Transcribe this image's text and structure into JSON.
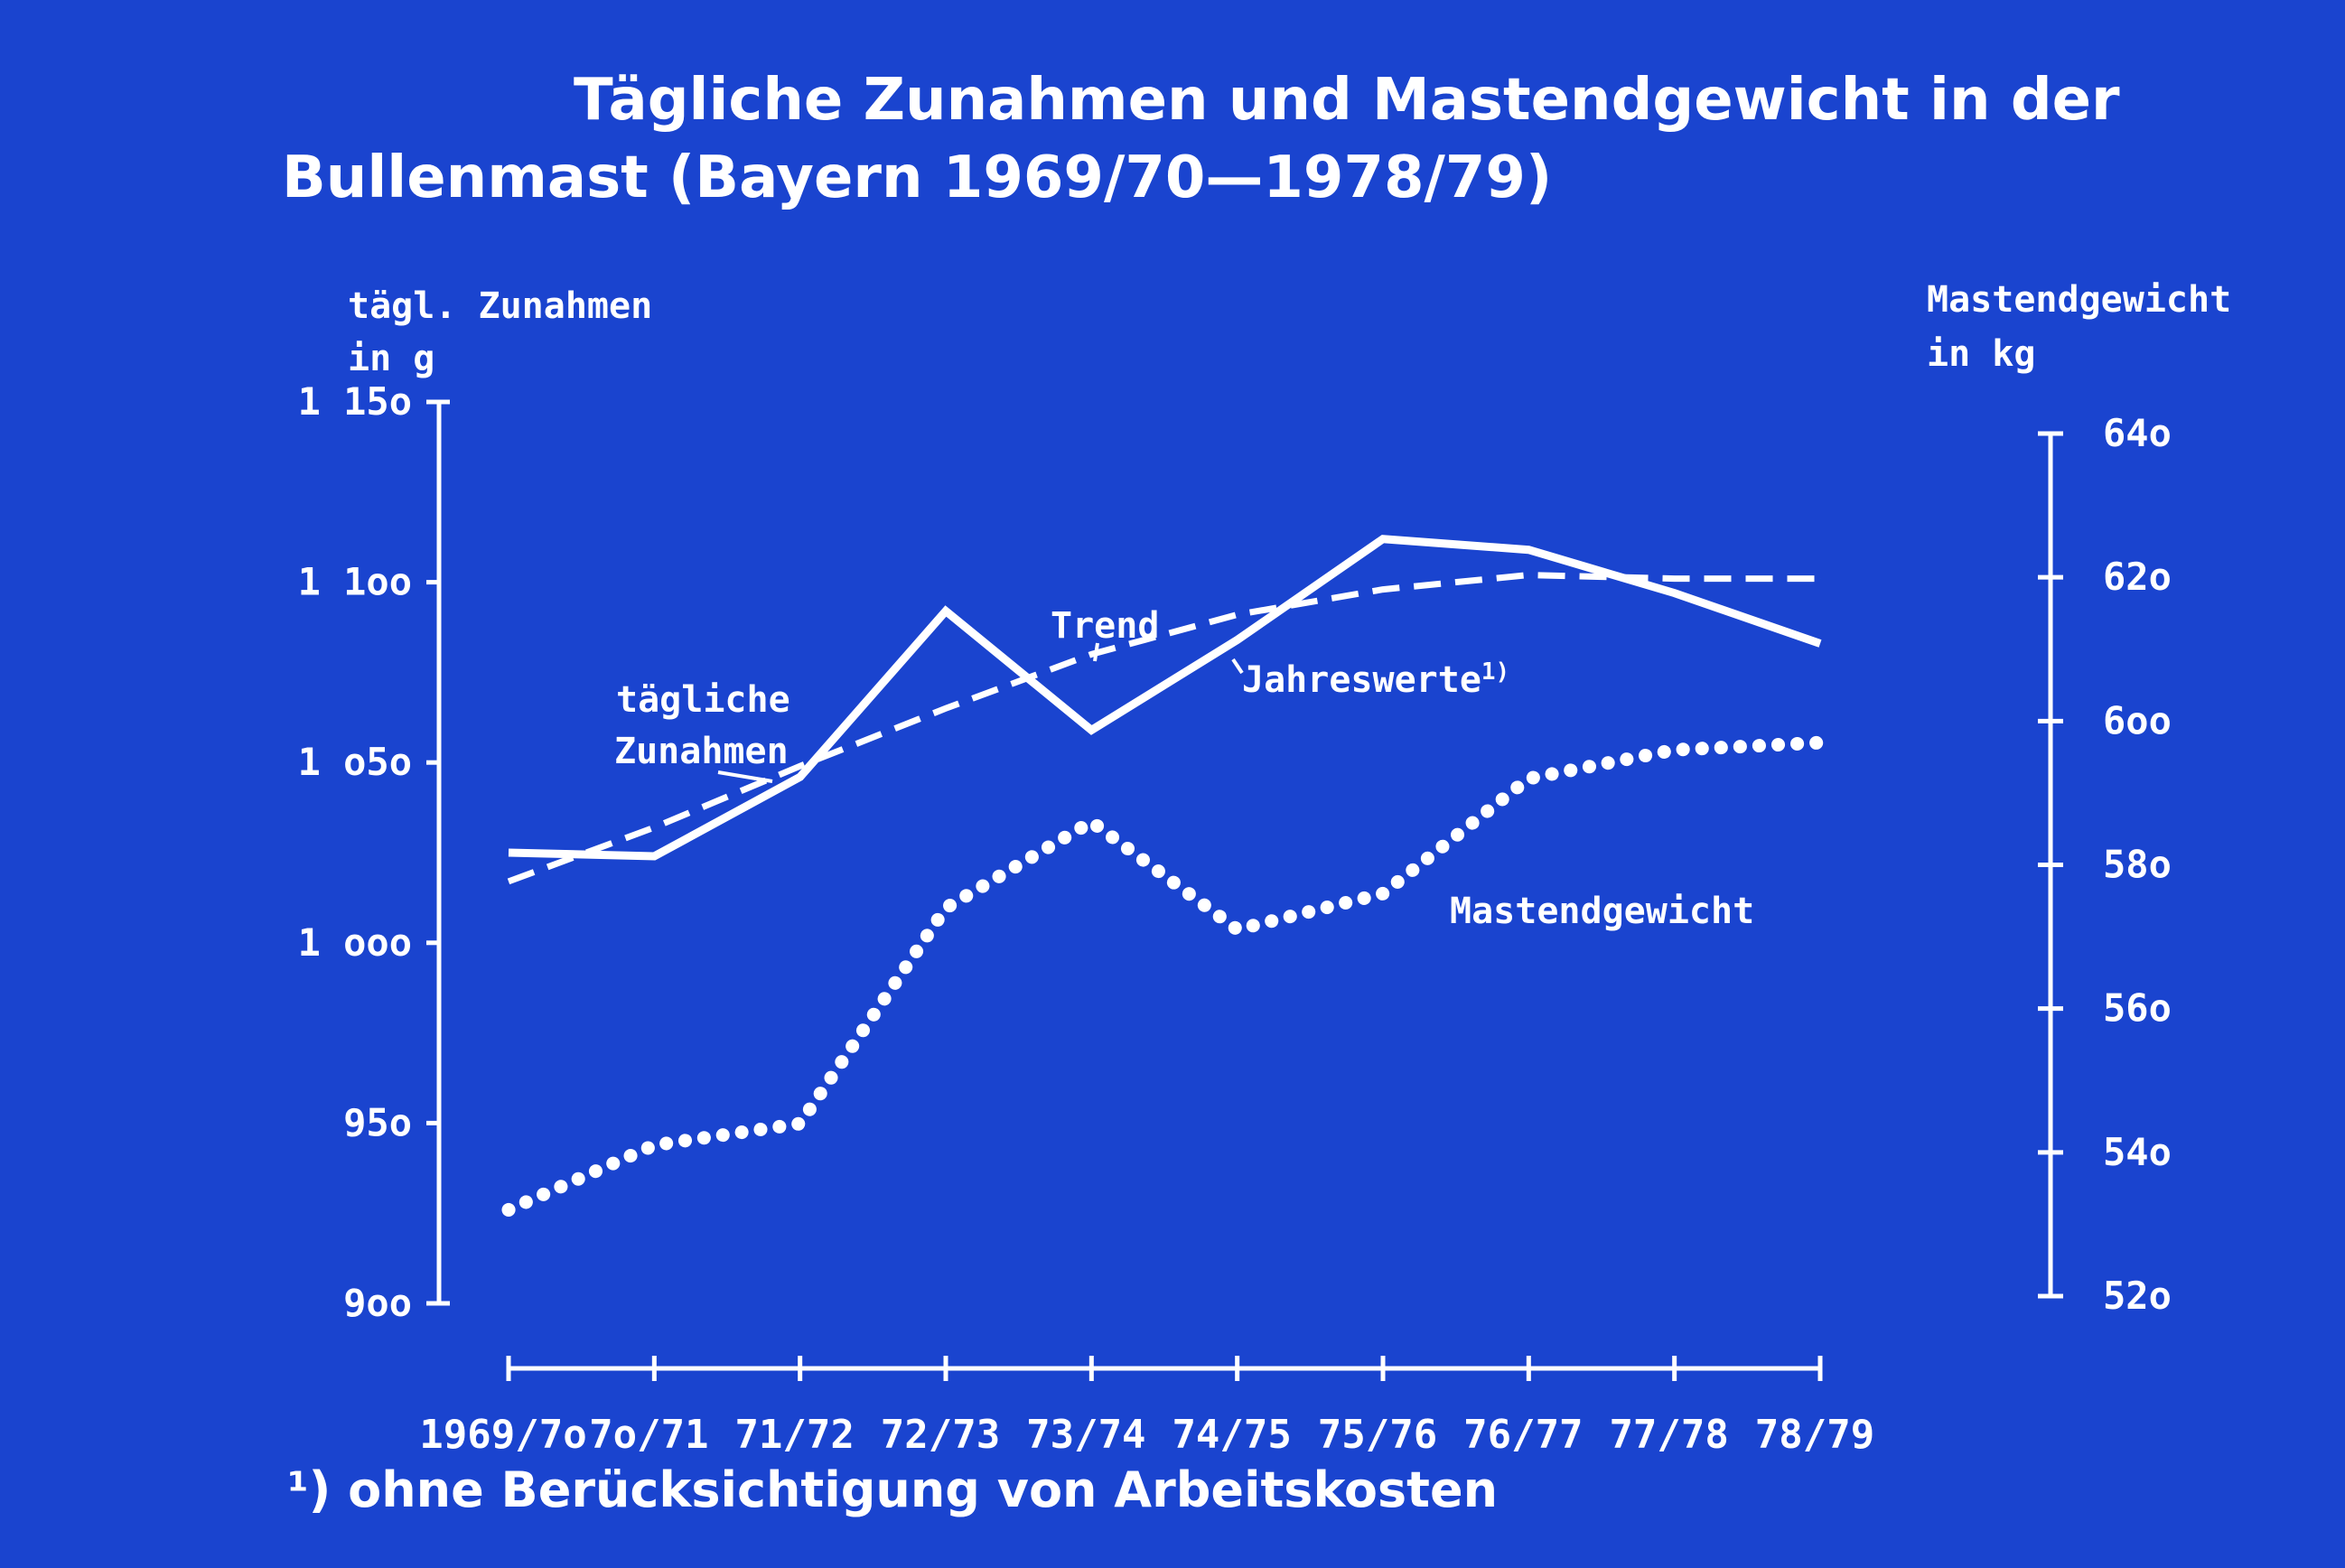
{
  "title_line1": "Tägliche Zunahmen und Mastendgewicht in der",
  "title_line2": "Bullenmast (Bayern 1969/70—1978/79)",
  "footnote": "¹) ohne Berücksichtigung von Arbeitskosten",
  "colors": {
    "background": "#1a44cf",
    "foreground": "#ffffff"
  },
  "chart_data": {
    "type": "line",
    "categories": [
      "1969/7o",
      "7o/71",
      "71/72",
      "72/73",
      "73/74",
      "74/75",
      "75/76",
      "76/77",
      "77/78",
      "78/79"
    ],
    "y_left": {
      "label_line1": "tägl. Zunahmen",
      "label_line2": "in g",
      "ylim": [
        900,
        1150
      ],
      "ticks": [
        {
          "value": 1150,
          "label": "1 15o"
        },
        {
          "value": 1100,
          "label": "1 1oo"
        },
        {
          "value": 1050,
          "label": "1 o5o"
        },
        {
          "value": 1000,
          "label": "1 ooo"
        },
        {
          "value": 950,
          "label": "95o"
        },
        {
          "value": 900,
          "label": "9oo"
        }
      ]
    },
    "y_right": {
      "label_line1": "Mastendgewicht",
      "label_line2": "in kg",
      "ylim": [
        520,
        640
      ],
      "ticks": [
        {
          "value": 640,
          "label": "64o"
        },
        {
          "value": 620,
          "label": "62o"
        },
        {
          "value": 600,
          "label": "6oo"
        },
        {
          "value": 580,
          "label": "58o"
        },
        {
          "value": 560,
          "label": "56o"
        },
        {
          "value": 540,
          "label": "54o"
        },
        {
          "value": 520,
          "label": "52o"
        }
      ]
    },
    "series": [
      {
        "name": "Jahreswerte¹⁾",
        "axis": "left",
        "style": "solid",
        "values": [
          1025,
          1024,
          1046,
          1092,
          1059,
          1084,
          1112,
          1109,
          1097,
          1083
        ]
      },
      {
        "name": "Trend",
        "axis": "left",
        "style": "dashed",
        "values": [
          1017,
          1032,
          1049,
          1065,
          1080,
          1091,
          1098,
          1102,
          1101,
          1101
        ]
      },
      {
        "name": "Mastendgewicht",
        "axis": "right",
        "style": "dotted",
        "values": [
          532,
          541,
          544,
          574,
          586,
          571,
          576,
          592,
          596,
          597
        ]
      }
    ],
    "annotations": {
      "daily_gain_line1": "tägliche",
      "daily_gain_line2": "Zunahmen",
      "trend": "Trend",
      "annual_values": "Jahreswerte",
      "annual_values_sup": "1)",
      "final_weight": "Mastendgewicht"
    },
    "legend": "none",
    "grid": false
  }
}
